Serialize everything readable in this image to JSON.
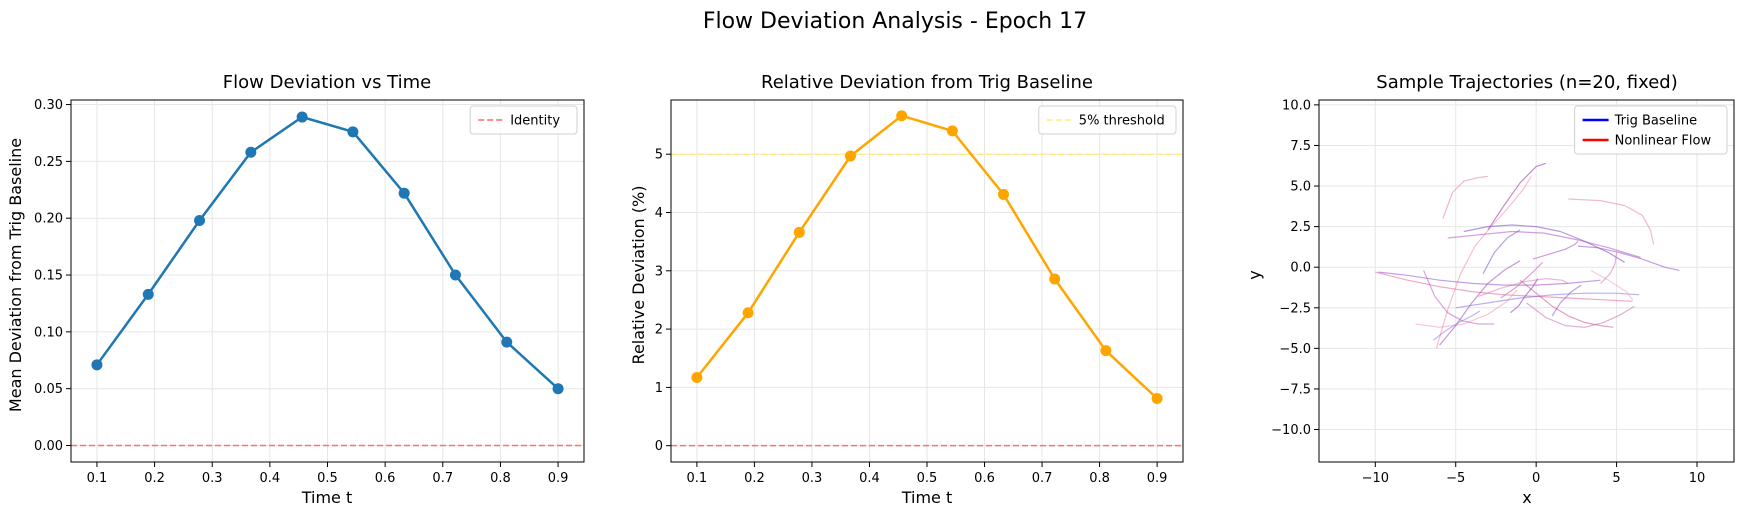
{
  "figure": {
    "suptitle": "Flow Deviation Analysis - Epoch 17"
  },
  "chart_data": [
    {
      "type": "line",
      "title": "Flow Deviation vs Time",
      "xlabel": "Time t",
      "ylabel": "Mean Deviation from Trig Baseline",
      "xlim": [
        0.055,
        0.945
      ],
      "ylim": [
        -0.0145,
        0.304
      ],
      "xticks": [
        0.1,
        0.2,
        0.3,
        0.4,
        0.5,
        0.6,
        0.7,
        0.8,
        0.9
      ],
      "xtick_labels": [
        "0.1",
        "0.2",
        "0.3",
        "0.4",
        "0.5",
        "0.6",
        "0.7",
        "0.8",
        "0.9"
      ],
      "yticks": [
        0.0,
        0.05,
        0.1,
        0.15,
        0.2,
        0.25,
        0.3
      ],
      "ytick_labels": [
        "0.00",
        "0.05",
        "0.10",
        "0.15",
        "0.20",
        "0.25",
        "0.30"
      ],
      "grid": true,
      "legend_position": "upper-right",
      "series": [
        {
          "color": "#1f77b4",
          "marker": "circle",
          "x": [
            0.1,
            0.189,
            0.278,
            0.367,
            0.456,
            0.544,
            0.633,
            0.722,
            0.811,
            0.9
          ],
          "y": [
            0.071,
            0.133,
            0.198,
            0.258,
            0.289,
            0.276,
            0.222,
            0.15,
            0.091,
            0.05
          ]
        }
      ],
      "reference_lines": [
        {
          "name": "Identity",
          "y": 0,
          "color": "#ff6666",
          "style": "dashed",
          "in_legend": true
        }
      ]
    },
    {
      "type": "line",
      "title": "Relative Deviation from Trig Baseline",
      "xlabel": "Time t",
      "ylabel": "Relative Deviation (%)",
      "xlim": [
        0.055,
        0.945
      ],
      "ylim": [
        -0.28,
        5.93
      ],
      "xticks": [
        0.1,
        0.2,
        0.3,
        0.4,
        0.5,
        0.6,
        0.7,
        0.8,
        0.9
      ],
      "xtick_labels": [
        "0.1",
        "0.2",
        "0.3",
        "0.4",
        "0.5",
        "0.6",
        "0.7",
        "0.8",
        "0.9"
      ],
      "yticks": [
        0,
        1,
        2,
        3,
        4,
        5
      ],
      "ytick_labels": [
        "0",
        "1",
        "2",
        "3",
        "4",
        "5"
      ],
      "grid": true,
      "legend_position": "upper-right",
      "series": [
        {
          "color": "#ffa500",
          "marker": "circle",
          "x": [
            0.1,
            0.189,
            0.278,
            0.367,
            0.456,
            0.544,
            0.633,
            0.722,
            0.811,
            0.9
          ],
          "y": [
            1.17,
            2.28,
            3.66,
            4.97,
            5.66,
            5.4,
            4.31,
            2.86,
            1.63,
            0.81
          ]
        }
      ],
      "reference_lines": [
        {
          "name": "5% threshold",
          "y": 5,
          "color": "#fff06a",
          "style": "dashed",
          "in_legend": true
        },
        {
          "y": 0,
          "color": "#ff6666",
          "style": "dashed",
          "in_legend": false
        }
      ]
    },
    {
      "type": "line",
      "title": "Sample Trajectories (n=20, fixed)",
      "xlabel": "x",
      "ylabel": "y",
      "xlim": [
        -13.5,
        12.3
      ],
      "ylim": [
        -12.0,
        10.3
      ],
      "xticks": [
        -10,
        -5,
        0,
        5,
        10
      ],
      "xtick_labels": [
        "−10",
        "−5",
        "0",
        "5",
        "10"
      ],
      "yticks": [
        -10,
        -7.5,
        -5,
        -2.5,
        0,
        2.5,
        5,
        7.5,
        10
      ],
      "ytick_labels": [
        "−10.0",
        "−7.5",
        "−5.0",
        "−2.5",
        "0.0",
        "2.5",
        "5.0",
        "7.5",
        "10.0"
      ],
      "grid": true,
      "legend_position": "upper-right",
      "legend": [
        {
          "name": "Trig Baseline",
          "color": "#0000ff"
        },
        {
          "name": "Nonlinear Flow",
          "color": "#ff0000"
        }
      ],
      "series": [
        {
          "color": "#7b3fd0",
          "opacity": 0.55,
          "x": [
            -4.5,
            -3,
            -1.5,
            0,
            1.5,
            3,
            4.5,
            5.5
          ],
          "y": [
            2.2,
            2.5,
            2.6,
            2.5,
            2.2,
            1.6,
            0.9,
            0.3
          ]
        },
        {
          "color": "#e0609a",
          "opacity": 0.55,
          "x": [
            -10,
            -8,
            -6,
            -4,
            -2,
            0,
            2,
            4,
            6
          ],
          "y": [
            -0.3,
            -0.8,
            -1.2,
            -1.5,
            -1.7,
            -1.8,
            -1.9,
            -2.0,
            -2.1
          ]
        },
        {
          "color": "#9b59c8",
          "opacity": 0.6,
          "x": [
            -6,
            -5,
            -4,
            -3,
            -2,
            -1
          ],
          "y": [
            -4.8,
            -3.6,
            -2.2,
            -1.0,
            -0.2,
            0.4
          ]
        },
        {
          "color": "#f08aa8",
          "opacity": 0.55,
          "x": [
            -6.2,
            -5.5,
            -4.7,
            -3.8,
            -2.8,
            -1.7,
            -0.8,
            -0.3
          ],
          "y": [
            -5.0,
            -2.6,
            -0.4,
            1.3,
            2.5,
            3.7,
            4.8,
            5.6
          ]
        },
        {
          "color": "#9a3fb0",
          "opacity": 0.6,
          "x": [
            -3,
            -2,
            -1,
            0,
            0.6
          ],
          "y": [
            2.3,
            3.8,
            5.2,
            6.2,
            6.4
          ]
        },
        {
          "color": "#e06fa0",
          "opacity": 0.5,
          "x": [
            -5.8,
            -5.2,
            -4.5,
            -3.7,
            -3
          ],
          "y": [
            3.0,
            4.6,
            5.3,
            5.5,
            5.6
          ]
        },
        {
          "color": "#b050b8",
          "opacity": 0.55,
          "x": [
            -5.5,
            -3.5,
            -1.5,
            0.5,
            2.5,
            4.5,
            6.5
          ],
          "y": [
            1.8,
            2.0,
            2.2,
            2.1,
            1.7,
            1.2,
            0.6
          ]
        },
        {
          "color": "#7b5fd8",
          "opacity": 0.5,
          "x": [
            -5,
            -3,
            -1,
            1,
            3,
            5,
            6.4
          ],
          "y": [
            -2.5,
            -2.2,
            -1.9,
            -1.7,
            -1.6,
            -1.6,
            -1.7
          ]
        },
        {
          "color": "#d0508f",
          "opacity": 0.55,
          "x": [
            -1,
            0,
            1,
            2,
            3,
            4,
            4.8
          ],
          "y": [
            -0.8,
            -1.6,
            -2.4,
            -3.0,
            -3.4,
            -3.6,
            -3.7
          ]
        },
        {
          "color": "#c060a0",
          "opacity": 0.5,
          "x": [
            -0.6,
            0.6,
            1.8,
            3,
            4.2,
            5.3,
            6.1
          ],
          "y": [
            -2.2,
            -3.1,
            -3.6,
            -3.7,
            -3.4,
            -2.9,
            -2.4
          ]
        },
        {
          "color": "#8b4fc8",
          "opacity": 0.55,
          "x": [
            2.6,
            3.8,
            5.2,
            6.6,
            8,
            8.9
          ],
          "y": [
            1.3,
            1.2,
            0.9,
            0.5,
            0.0,
            -0.2
          ]
        },
        {
          "color": "#e07aa2",
          "opacity": 0.5,
          "x": [
            2,
            4,
            5.5,
            6.6,
            7.1,
            7.3
          ],
          "y": [
            4.2,
            4.1,
            3.8,
            3.2,
            2.3,
            1.4
          ]
        },
        {
          "color": "#8f3fb8",
          "opacity": 0.6,
          "x": [
            -1.6,
            -1.1,
            -0.7,
            -0.2,
            0.1
          ],
          "y": [
            -2.8,
            -2.4,
            -1.8,
            -1.2,
            -0.7
          ]
        },
        {
          "color": "#b050c0",
          "opacity": 0.5,
          "x": [
            -7,
            -6.3,
            -5.5,
            -4.6,
            -3.6,
            -2.6
          ],
          "y": [
            -0.2,
            -1.8,
            -2.8,
            -3.3,
            -3.5,
            -3.5
          ]
        },
        {
          "color": "#6f5fe0",
          "opacity": 0.45,
          "x": [
            -6.4,
            -5.6,
            -4.8,
            -4.0,
            -3.5
          ],
          "y": [
            -4.5,
            -3.9,
            -3.4,
            -3.0,
            -2.7
          ]
        },
        {
          "color": "#e06aa8",
          "opacity": 0.5,
          "x": [
            -3.6,
            -2.2,
            -0.8,
            0.6,
            1.6,
            2.0
          ],
          "y": [
            -1.8,
            -1.3,
            -0.9,
            -0.7,
            -0.8,
            -1.0
          ]
        },
        {
          "color": "#a04cc0",
          "opacity": 0.55,
          "x": [
            -0.2,
            0.8,
            1.8,
            2.4,
            2.6
          ],
          "y": [
            0.5,
            0.8,
            1.1,
            1.4,
            1.6
          ]
        },
        {
          "color": "#d06aa0",
          "opacity": 0.5,
          "x": [
            4.0,
            4.6,
            4.9,
            5.0
          ],
          "y": [
            -1.0,
            -0.4,
            0.2,
            0.9
          ]
        },
        {
          "color": "#9a4ad0",
          "opacity": 0.55,
          "x": [
            -9.8,
            -8,
            -6,
            -4,
            -2,
            0,
            2,
            4
          ],
          "y": [
            -0.3,
            -0.5,
            -0.8,
            -1.0,
            -1.1,
            -1.1,
            -1.0,
            -0.8
          ]
        },
        {
          "color": "#f07fa5",
          "opacity": 0.45,
          "x": [
            -7.5,
            -6,
            -4.5,
            -3,
            -1.8,
            -1.2
          ],
          "y": [
            -3.5,
            -3.7,
            -3.5,
            -2.9,
            -2.1,
            -1.4
          ]
        },
        {
          "color": "#7d4fd0",
          "opacity": 0.55,
          "x": [
            -3.3,
            -2.6,
            -1.8,
            -1.0
          ],
          "y": [
            -0.4,
            0.9,
            1.8,
            2.3
          ]
        },
        {
          "color": "#c45aa5",
          "opacity": 0.55,
          "x": [
            -2.2,
            -1.2,
            -0.2,
            0.4
          ],
          "y": [
            -1.9,
            -1.2,
            -0.3,
            0.3
          ]
        },
        {
          "color": "#8a3fc0",
          "opacity": 0.5,
          "x": [
            1.0,
            1.5,
            2.2,
            2.8
          ],
          "y": [
            -3.0,
            -2.2,
            -1.5,
            -1.1
          ]
        },
        {
          "color": "#f090b0",
          "opacity": 0.45,
          "x": [
            3.4,
            4.5,
            5.6,
            6.0
          ],
          "y": [
            -0.2,
            -0.8,
            -1.5,
            -2.0
          ]
        }
      ]
    }
  ]
}
